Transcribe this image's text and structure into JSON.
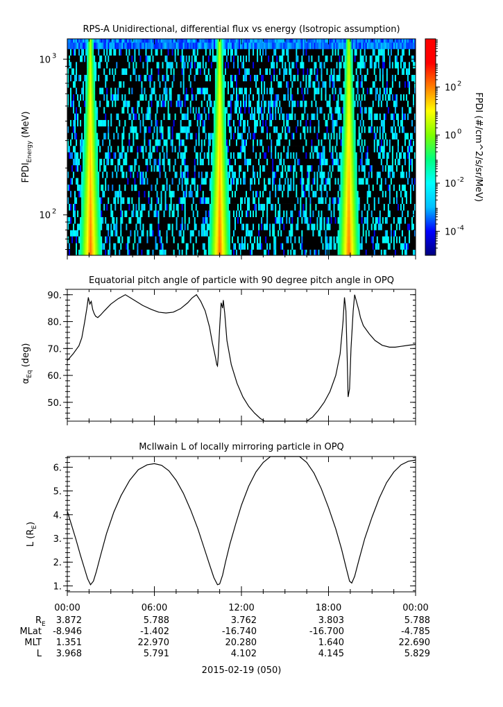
{
  "chart_data": [
    {
      "type": "heatmap",
      "title": "RPS-A Unidirectional, differential flux vs energy (Isotropic assumption)",
      "ylabel_main": "FPDI",
      "ylabel_sub": "Energy",
      "ylabel_unit": " (MeV)",
      "yscale": "log",
      "ylim": [
        55,
        1350
      ],
      "yticks": [
        {
          "value": 100,
          "base": "10",
          "exp": "2"
        },
        {
          "value": 1000,
          "base": "10",
          "exp": "3"
        }
      ],
      "energy_bins_mev": [
        55,
        60,
        66,
        73,
        80,
        88,
        97,
        107,
        118,
        130,
        143,
        157,
        173,
        190,
        209,
        230,
        253,
        278,
        306,
        337,
        371,
        408,
        449,
        494,
        543,
        597,
        657,
        723,
        795,
        875,
        962,
        1058,
        1164,
        1280,
        1350
      ],
      "xlim_hours": [
        0,
        24
      ],
      "high_flux_bands": [
        {
          "center_hours": 1.6,
          "width_low_energy_hours": 1.6,
          "width_high_energy_hours": 0.4
        },
        {
          "center_hours": 10.5,
          "width_low_energy_hours": 1.6,
          "width_high_energy_hours": 0.4
        },
        {
          "center_hours": 19.4,
          "width_low_energy_hours": 1.6,
          "width_high_energy_hours": 0.4
        }
      ],
      "colorbar": {
        "label": "FPDI (#/cm^2/s/sr/MeV)",
        "scale": "log",
        "range": [
          1e-05,
          10000.0
        ],
        "ticks": [
          {
            "value": 0.0001,
            "base": "10",
            "exp": "-4"
          },
          {
            "value": 0.01,
            "base": "10",
            "exp": "-2"
          },
          {
            "value": 1,
            "base": "10",
            "exp": "0"
          },
          {
            "value": 100,
            "base": "10",
            "exp": "2"
          }
        ],
        "colormap": [
          "#00007f",
          "#0000ff",
          "#00bfff",
          "#00ffff",
          "#00ff7f",
          "#7fff00",
          "#ffff00",
          "#ff7f00",
          "#ff0000",
          "#ff0000"
        ]
      }
    },
    {
      "type": "line",
      "title": "Equatorial pitch angle of particle with 90 degree pitch angle in OPQ",
      "ylabel_main": "α",
      "ylabel_sub": "Eq",
      "ylabel_unit": " (deg)",
      "ylim": [
        43,
        92
      ],
      "yticks": [
        50,
        60,
        70,
        80,
        90
      ],
      "ytick_labels": [
        "50.",
        "60.",
        "70.",
        "80.",
        "90."
      ],
      "xlim_hours": [
        0,
        24
      ],
      "series": [
        {
          "x": [
            0.0,
            0.4,
            0.8,
            1.0,
            1.2,
            1.35,
            1.45,
            1.55,
            1.65,
            1.75,
            1.85,
            1.95,
            2.1,
            2.3,
            2.55,
            3.0,
            3.5,
            4.0,
            4.6,
            5.2,
            5.8,
            6.3,
            6.8,
            7.3,
            7.8,
            8.3,
            8.6,
            8.9,
            9.2,
            9.5,
            9.8,
            10.0,
            10.2,
            10.3,
            10.35,
            10.4,
            10.5,
            10.6,
            10.7,
            10.75,
            10.85,
            11.0,
            11.3,
            11.7,
            12.1,
            12.5,
            12.9,
            13.3,
            13.6,
            14.0,
            15.0,
            16.0,
            16.5,
            16.9,
            17.3,
            17.7,
            18.1,
            18.5,
            18.8,
            19.0,
            19.1,
            19.2,
            19.3,
            19.35,
            19.45,
            19.55,
            19.7,
            19.8,
            19.95,
            20.1,
            20.2,
            20.4,
            20.8,
            21.2,
            21.7,
            22.2,
            22.6,
            23.0,
            23.5,
            24.0
          ],
          "y": [
            65.5,
            68.0,
            71.0,
            74.0,
            80.0,
            85.0,
            89.0,
            86.5,
            87.5,
            84.5,
            83.0,
            82.0,
            81.5,
            82.5,
            84.0,
            86.5,
            88.5,
            90.0,
            88.0,
            86.0,
            84.5,
            83.5,
            83.2,
            83.5,
            84.8,
            87.0,
            88.8,
            90.0,
            87.5,
            84.0,
            78.0,
            72.0,
            67.0,
            64.0,
            63.5,
            67.0,
            78.0,
            87.0,
            85.0,
            88.0,
            83.0,
            73.0,
            64.0,
            57.0,
            52.0,
            48.5,
            46.0,
            44.0,
            43.0,
            43.0,
            43.0,
            43.0,
            43.0,
            44.5,
            47.0,
            50.0,
            54.0,
            60.0,
            68.0,
            80.0,
            89.0,
            84.0,
            64.0,
            52.0,
            55.0,
            70.0,
            84.0,
            90.0,
            87.0,
            84.0,
            81.5,
            78.5,
            75.5,
            73.0,
            71.2,
            70.5,
            70.5,
            70.8,
            71.2,
            71.5
          ]
        }
      ]
    },
    {
      "type": "line",
      "title": "McIlwain L of locally mirroring particle in OPQ",
      "ylabel_main": "L (R",
      "ylabel_sub": "E",
      "ylabel_unit": ")",
      "ylim": [
        0.75,
        6.45
      ],
      "yticks": [
        1,
        2,
        3,
        4,
        5,
        6
      ],
      "ytick_labels": [
        "1.",
        "2.",
        "3.",
        "4.",
        "5.",
        "6."
      ],
      "xlim_hours": [
        0,
        24
      ],
      "series": [
        {
          "x": [
            0.0,
            0.3,
            0.6,
            0.9,
            1.2,
            1.4,
            1.6,
            1.8,
            2.0,
            2.3,
            2.7,
            3.2,
            3.7,
            4.3,
            4.9,
            5.5,
            6.0,
            6.5,
            7.0,
            7.5,
            8.0,
            8.5,
            9.0,
            9.4,
            9.8,
            10.1,
            10.35,
            10.5,
            10.7,
            10.9,
            11.2,
            11.6,
            12.0,
            12.5,
            13.0,
            13.5,
            14.0,
            14.5,
            15.0,
            15.5,
            16.0,
            16.5,
            17.0,
            17.5,
            18.0,
            18.5,
            18.9,
            19.2,
            19.45,
            19.6,
            19.8,
            20.1,
            20.5,
            21.0,
            21.5,
            22.0,
            22.5,
            23.0,
            23.5,
            24.0
          ],
          "y": [
            4.15,
            3.55,
            2.95,
            2.3,
            1.7,
            1.3,
            1.05,
            1.2,
            1.6,
            2.3,
            3.2,
            4.1,
            4.8,
            5.45,
            5.9,
            6.1,
            6.15,
            6.08,
            5.85,
            5.45,
            4.9,
            4.2,
            3.4,
            2.65,
            1.9,
            1.35,
            1.05,
            1.08,
            1.45,
            2.0,
            2.75,
            3.6,
            4.4,
            5.2,
            5.8,
            6.2,
            6.45,
            6.45,
            6.45,
            6.45,
            6.45,
            6.2,
            5.75,
            5.1,
            4.3,
            3.4,
            2.55,
            1.8,
            1.2,
            1.12,
            1.4,
            2.1,
            3.0,
            3.9,
            4.7,
            5.35,
            5.8,
            6.1,
            6.25,
            6.3
          ]
        }
      ]
    }
  ],
  "xaxis": {
    "tick_hours": [
      0,
      6,
      12,
      18,
      24
    ],
    "tick_labels": [
      "00:00",
      "06:00",
      "12:00",
      "18:00",
      "00:00"
    ],
    "minor_step_hours": 1.5,
    "date_label": "2015-02-19 (050)"
  },
  "ephemeris": {
    "rows": [
      {
        "label": "R",
        "sub": "E",
        "values": [
          "3.872",
          "5.788",
          "3.762",
          "3.803",
          "5.788"
        ]
      },
      {
        "label": "MLat",
        "sub": "",
        "values": [
          "-8.946",
          "-1.402",
          "-16.740",
          "-16.700",
          "-4.785"
        ]
      },
      {
        "label": "MLT",
        "sub": "",
        "values": [
          "1.351",
          "22.970",
          "20.280",
          "1.640",
          "22.690"
        ]
      },
      {
        "label": "L",
        "sub": "",
        "values": [
          "3.968",
          "5.791",
          "4.102",
          "4.145",
          "5.829"
        ]
      }
    ]
  }
}
